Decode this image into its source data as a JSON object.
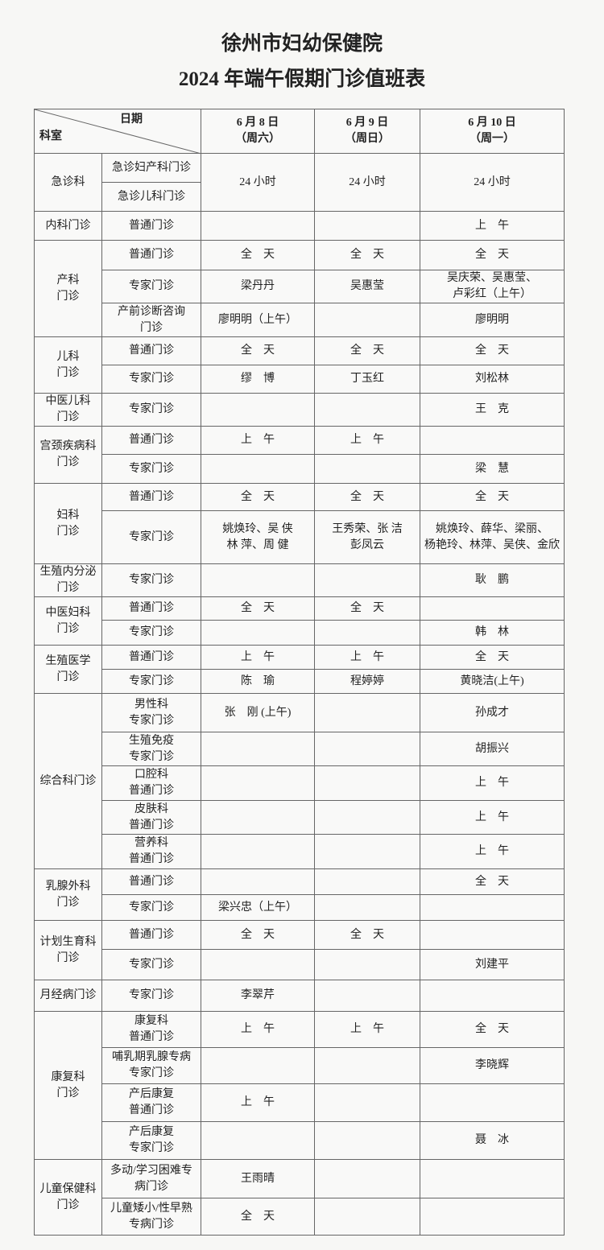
{
  "header": {
    "title": "徐州市妇幼保健院",
    "subtitle": "2024 年端午假期门诊值班表"
  },
  "table": {
    "date_label": "日期",
    "dept_label": "科室",
    "dates": [
      {
        "date": "6 月 8 日",
        "weekday": "（周六）"
      },
      {
        "date": "6 月 9 日",
        "weekday": "（周日）"
      },
      {
        "date": "6 月 10 日",
        "weekday": "（周一）"
      }
    ],
    "groups": [
      {
        "dept": "急诊科",
        "shared": true,
        "rows": [
          {
            "clinic": "急诊妇产科门诊",
            "cells": [
              "24 小时",
              "24 小时",
              "24 小时"
            ]
          },
          {
            "clinic": "急诊儿科门诊"
          }
        ]
      },
      {
        "dept": "内科门诊",
        "rows": [
          {
            "clinic": "普通门诊",
            "cells": [
              null,
              null,
              "上　午"
            ]
          }
        ]
      },
      {
        "dept": "产科\n门诊",
        "rows": [
          {
            "clinic": "普通门诊",
            "cells": [
              "全　天",
              "全　天",
              "全　天"
            ]
          },
          {
            "clinic": "专家门诊",
            "cells": [
              "梁丹丹",
              "吴惠莹",
              "吴庆荣、吴惠莹、\n卢彩红（上午）"
            ]
          },
          {
            "clinic": "产前诊断咨询\n门诊",
            "cells": [
              "廖明明（上午）",
              null,
              "廖明明"
            ]
          }
        ]
      },
      {
        "dept": "儿科\n门诊",
        "rows": [
          {
            "clinic": "普通门诊",
            "cells": [
              "全　天",
              "全　天",
              "全　天"
            ]
          },
          {
            "clinic": "专家门诊",
            "cells": [
              "缪　博",
              "丁玉红",
              "刘松林"
            ]
          }
        ]
      },
      {
        "dept": "中医儿科\n门诊",
        "rows": [
          {
            "clinic": "专家门诊",
            "cells": [
              null,
              null,
              "王　克"
            ]
          }
        ]
      },
      {
        "dept": "宫颈疾病科\n门诊",
        "rows": [
          {
            "clinic": "普通门诊",
            "cells": [
              "上　午",
              "上　午",
              null
            ]
          },
          {
            "clinic": "专家门诊",
            "cells": [
              null,
              null,
              "梁　慧"
            ]
          }
        ]
      },
      {
        "dept": "妇科\n门诊",
        "rows": [
          {
            "clinic": "普通门诊",
            "cells": [
              "全　天",
              "全　天",
              "全　天"
            ]
          },
          {
            "clinic": "专家门诊",
            "cells": [
              "姚焕玲、吴 侠\n林 萍、周 健",
              "王秀荣、张 洁\n彭凤云",
              "姚焕玲、薛华、梁丽、\n杨艳玲、林萍、吴侠、金欣"
            ]
          }
        ]
      },
      {
        "dept": "生殖内分泌\n门诊",
        "rows": [
          {
            "clinic": "专家门诊",
            "cells": [
              null,
              null,
              "耿　鹏"
            ]
          }
        ]
      },
      {
        "dept": "中医妇科\n门诊",
        "rows": [
          {
            "clinic": "普通门诊",
            "cells": [
              "全　天",
              "全　天",
              null
            ]
          },
          {
            "clinic": "专家门诊",
            "cells": [
              null,
              null,
              "韩　林"
            ]
          }
        ]
      },
      {
        "dept": "生殖医学\n门诊",
        "rows": [
          {
            "clinic": "普通门诊",
            "cells": [
              "上　午",
              "上　午",
              "全　天"
            ]
          },
          {
            "clinic": "专家门诊",
            "cells": [
              "陈　瑜",
              "程婷婷",
              "黄晓洁(上午)"
            ]
          }
        ]
      },
      {
        "dept": "综合科门诊",
        "rows": [
          {
            "clinic": "男性科\n专家门诊",
            "cells": [
              "张　刚 (上午)",
              null,
              "孙成才"
            ]
          },
          {
            "clinic": "生殖免疫\n专家门诊",
            "cells": [
              null,
              null,
              "胡振兴"
            ]
          },
          {
            "clinic": "口腔科\n普通门诊",
            "cells": [
              null,
              null,
              "上　午"
            ]
          },
          {
            "clinic": "皮肤科\n普通门诊",
            "cells": [
              null,
              null,
              "上　午"
            ]
          },
          {
            "clinic": "营养科\n普通门诊",
            "cells": [
              null,
              null,
              "上　午"
            ]
          }
        ]
      },
      {
        "dept": "乳腺外科\n门诊",
        "rows": [
          {
            "clinic": "普通门诊",
            "cells": [
              null,
              null,
              "全　天"
            ]
          },
          {
            "clinic": "专家门诊",
            "cells": [
              "梁兴忠（上午）",
              null,
              null
            ]
          }
        ]
      },
      {
        "dept": "计划生育科\n门诊",
        "rows": [
          {
            "clinic": "普通门诊",
            "cells": [
              "全　天",
              "全　天",
              null
            ]
          },
          {
            "clinic": "专家门诊",
            "cells": [
              null,
              null,
              "刘建平"
            ]
          }
        ]
      },
      {
        "dept": "月经病门诊",
        "rows": [
          {
            "clinic": "专家门诊",
            "cells": [
              "李翠芹",
              null,
              null
            ]
          }
        ]
      },
      {
        "dept": "康复科\n门诊",
        "rows": [
          {
            "clinic": "康复科\n普通门诊",
            "cells": [
              "上　午",
              "上　午",
              "全　天"
            ]
          },
          {
            "clinic": "哺乳期乳腺专病\n专家门诊",
            "cells": [
              null,
              null,
              "李晓辉"
            ]
          },
          {
            "clinic": "产后康复\n普通门诊",
            "cells": [
              "上　午",
              null,
              null
            ]
          },
          {
            "clinic": "产后康复\n专家门诊",
            "cells": [
              null,
              null,
              "聂　冰"
            ]
          }
        ]
      },
      {
        "dept": "儿童保健科\n门诊",
        "rows": [
          {
            "clinic": "多动/学习困难专\n病门诊",
            "cells": [
              "王雨晴",
              null,
              null
            ]
          },
          {
            "clinic": "儿童矮小/性早熟\n专病门诊",
            "cells": [
              "全　天",
              null,
              null
            ]
          }
        ]
      }
    ]
  }
}
